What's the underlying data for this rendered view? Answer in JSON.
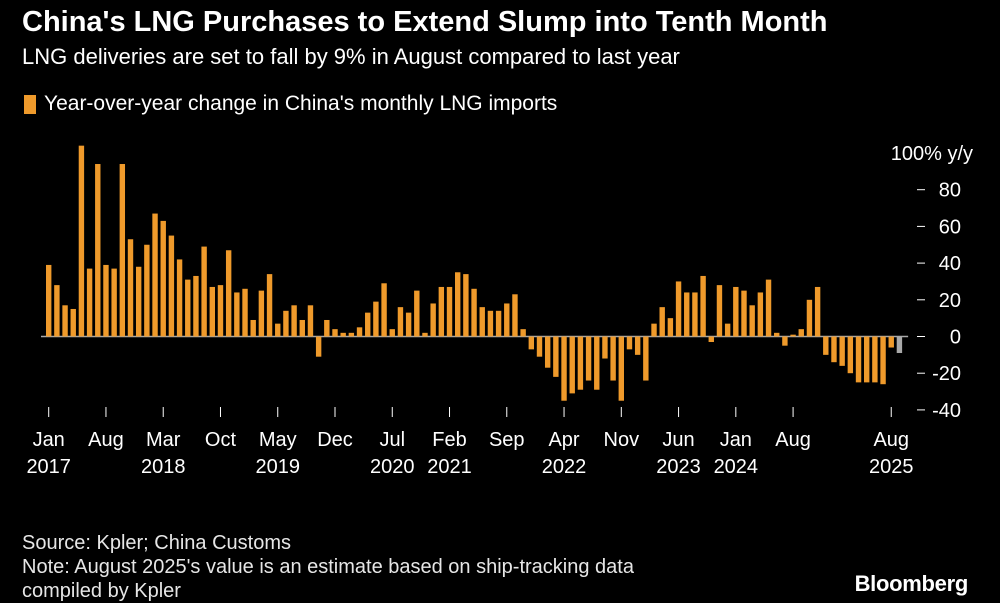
{
  "title": "China's LNG Purchases to Extend Slump into Tenth Month",
  "subtitle": "LNG deliveries are set to fall by 9% in August compared to last year",
  "legend_label": "Year-over-year change in China's monthly LNG imports",
  "source": "Source: Kpler; China Customs",
  "note_line1": "Note: August 2025's value is an estimate based on ship-tracking data",
  "note_line2": "compiled by Kpler",
  "brand": "Bloomberg",
  "colors": {
    "bar": "#ef9a2b",
    "estimate": "#a9a9a9",
    "background": "#000000",
    "zero_line": "#a9a9a9"
  },
  "chart_data": {
    "type": "bar",
    "title": "China's LNG Purchases to Extend Slump into Tenth Month",
    "ylabel": "y/y",
    "ylim": [
      -40,
      100
    ],
    "yticks": [
      {
        "value": 100,
        "label": "100% y/y"
      },
      {
        "value": 80,
        "label": "80"
      },
      {
        "value": 60,
        "label": "60"
      },
      {
        "value": 40,
        "label": "40"
      },
      {
        "value": 20,
        "label": "20"
      },
      {
        "value": 0,
        "label": "0"
      },
      {
        "value": -20,
        "label": "-20"
      },
      {
        "value": -40,
        "label": "-40"
      }
    ],
    "start": "2017-01",
    "xticks": [
      {
        "index": 0,
        "label": "Jan",
        "year": "2017"
      },
      {
        "index": 7,
        "label": "Aug",
        "year": ""
      },
      {
        "index": 14,
        "label": "Mar",
        "year": "2018"
      },
      {
        "index": 21,
        "label": "Oct",
        "year": ""
      },
      {
        "index": 28,
        "label": "May",
        "year": "2019"
      },
      {
        "index": 35,
        "label": "Dec",
        "year": ""
      },
      {
        "index": 42,
        "label": "Jul",
        "year": "2020"
      },
      {
        "index": 49,
        "label": "Feb",
        "year": "2021"
      },
      {
        "index": 56,
        "label": "Sep",
        "year": ""
      },
      {
        "index": 63,
        "label": "Apr",
        "year": "2022"
      },
      {
        "index": 70,
        "label": "Nov",
        "year": ""
      },
      {
        "index": 77,
        "label": "Jun",
        "year": "2023"
      },
      {
        "index": 84,
        "label": "Jan",
        "year": "2024"
      },
      {
        "index": 91,
        "label": "Aug",
        "year": ""
      },
      {
        "index": 103,
        "label": "Aug",
        "year": "2025"
      }
    ],
    "series": [
      {
        "name": "Year-over-year change in China's monthly LNG imports",
        "values": [
          39,
          28,
          17,
          15,
          104,
          37,
          94,
          39,
          37,
          94,
          53,
          38,
          50,
          67,
          63,
          55,
          42,
          31,
          33,
          49,
          27,
          28,
          47,
          24,
          26,
          9,
          25,
          34,
          7,
          14,
          17,
          9,
          17,
          -11,
          9,
          4,
          2,
          2,
          5,
          13,
          19,
          29,
          4,
          16,
          13,
          25,
          2,
          18,
          27,
          27,
          35,
          34,
          26,
          16,
          14,
          14,
          18,
          23,
          4,
          -7,
          -11,
          -17,
          -22,
          -35,
          -31,
          -29,
          -24,
          -29,
          -12,
          -24,
          -35,
          -7,
          -10,
          -24,
          7,
          16,
          10,
          30,
          24,
          24,
          33,
          -3,
          28,
          7,
          27,
          25,
          17,
          24,
          31,
          2,
          -5,
          1,
          4,
          20,
          27,
          -10,
          -14,
          -16,
          -20,
          -25,
          -25,
          -25,
          -26,
          -6,
          -9
        ],
        "estimate_last": true
      }
    ]
  }
}
